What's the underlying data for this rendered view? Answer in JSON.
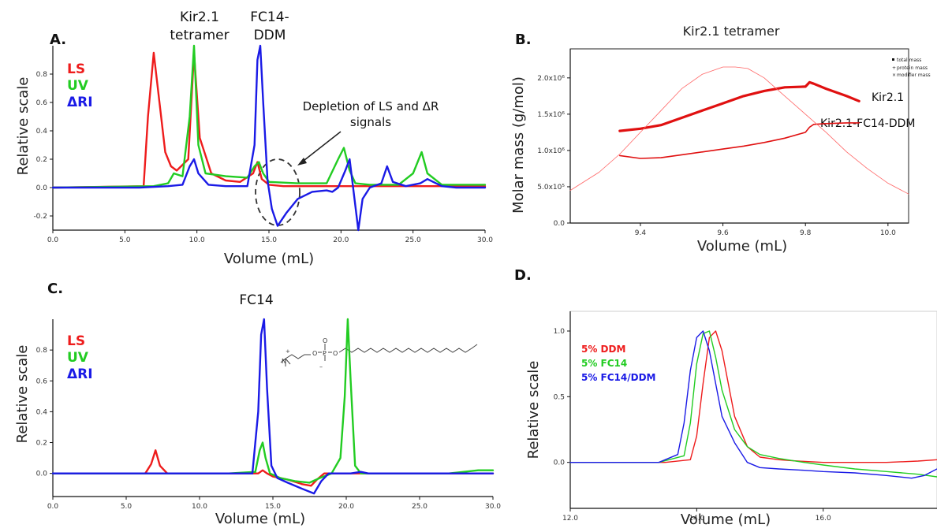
{
  "colors": {
    "LS": "#ee1c1c",
    "UV": "#22cc22",
    "RI": "#1a1ae6",
    "B_line": "#e01010",
    "axis": "#111111"
  },
  "panels": {
    "A": {
      "letter": "A.",
      "xlabel": "Volume (mL)",
      "ylabel": "Relative scale",
      "xticks": [
        "0.0",
        "5.0",
        "10.0",
        "15.0",
        "20.0",
        "25.0",
        "30.0"
      ],
      "yticks": [
        "-0.2",
        "0.0",
        "0.2",
        "0.4",
        "0.6",
        "0.8"
      ],
      "legend": [
        "LS",
        "UV",
        "ΔRI"
      ],
      "peak_label_1": [
        "Kir2.1",
        "tetramer"
      ],
      "peak_label_2": [
        "FC14-",
        "DDM"
      ],
      "annotation": [
        "Depletion of LS and ΔR",
        "signals"
      ]
    },
    "B": {
      "letter": "B.",
      "title": "Kir2.1 tetramer",
      "xlabel": "Volume (mL)",
      "ylabel": "Molar mass (g/mol)",
      "xticks": [
        "9.4",
        "9.6",
        "9.8",
        "10.0"
      ],
      "yticks": [
        "0.0",
        "5.0x10⁵",
        "1.0x10⁶",
        "1.5x10⁶",
        "2.0x10⁶"
      ],
      "legend": [
        "total mass",
        "protein mass",
        "modifier mass"
      ],
      "label_1": "Kir2.1",
      "label_2": "Kir2.1-FC14-DDM"
    },
    "C": {
      "letter": "C.",
      "title": "FC14",
      "xlabel": "Volume (mL)",
      "ylabel": "Relative scale",
      "xticks": [
        "0.0",
        "5.0",
        "10.0",
        "15.0",
        "20.0",
        "25.0",
        "30.0"
      ],
      "yticks": [
        "0.0",
        "0.2",
        "0.4",
        "0.6",
        "0.8"
      ],
      "legend": [
        "LS",
        "UV",
        "ΔRI"
      ]
    },
    "D": {
      "letter": "D.",
      "xlabel": "Volume (mL)",
      "ylabel": "Relative scale",
      "xticks": [
        "12.0",
        "14.0",
        "16.0"
      ],
      "yticks": [
        "0.0",
        "0.5",
        "1.0"
      ],
      "legend": [
        "5% DDM",
        "5% FC14",
        "5% FC14/DDM"
      ]
    }
  },
  "chart_data": [
    {
      "panel": "A",
      "type": "line",
      "xlim": [
        0,
        30
      ],
      "ylim": [
        -0.3,
        1.0
      ],
      "series": [
        {
          "name": "LS",
          "color": "#ee1c1c",
          "x": [
            0,
            6.3,
            6.6,
            7.0,
            7.4,
            7.8,
            8.2,
            8.6,
            9.4,
            9.8,
            10.2,
            11,
            12,
            13,
            13.9,
            14.2,
            14.5,
            15,
            16,
            17,
            18,
            19,
            20,
            21,
            22,
            23,
            24,
            25,
            26,
            27,
            28,
            29,
            30
          ],
          "y": [
            0,
            0.01,
            0.5,
            0.95,
            0.6,
            0.25,
            0.15,
            0.12,
            0.2,
            0.95,
            0.35,
            0.1,
            0.05,
            0.04,
            0.1,
            0.18,
            0.06,
            0.02,
            0.01,
            0.01,
            0.01,
            0.01,
            0.01,
            0.01,
            0.01,
            0.01,
            0.01,
            0.01,
            0.01,
            0.01,
            0.01,
            0.01,
            0.01
          ]
        },
        {
          "name": "UV",
          "color": "#22cc22",
          "x": [
            0,
            7,
            8,
            8.4,
            9,
            9.5,
            9.8,
            10.1,
            10.6,
            12,
            13.5,
            14,
            14.3,
            14.6,
            15,
            17,
            19,
            19.8,
            20.2,
            20.6,
            21,
            22,
            23,
            24,
            25,
            25.6,
            26,
            27,
            28,
            29,
            30
          ],
          "y": [
            0,
            0.01,
            0.03,
            0.1,
            0.08,
            0.5,
            1.0,
            0.3,
            0.1,
            0.08,
            0.07,
            0.15,
            0.18,
            0.1,
            0.04,
            0.03,
            0.03,
            0.2,
            0.28,
            0.12,
            0.03,
            0.02,
            0.02,
            0.02,
            0.1,
            0.25,
            0.1,
            0.02,
            0.02,
            0.02,
            0.02
          ]
        },
        {
          "name": "ΔRI",
          "color": "#1a1ae6",
          "x": [
            0,
            6,
            8,
            9,
            9.5,
            9.8,
            10.1,
            10.8,
            12,
            13.5,
            14,
            14.2,
            14.4,
            14.6,
            14.9,
            15.2,
            15.6,
            16.2,
            17,
            18,
            19,
            19.4,
            19.8,
            20.3,
            20.6,
            20.9,
            21.2,
            21.5,
            22,
            22.8,
            23.2,
            23.6,
            24.5,
            25.5,
            26,
            27,
            28,
            29,
            30
          ],
          "y": [
            0,
            0,
            0.01,
            0.02,
            0.15,
            0.2,
            0.1,
            0.02,
            0.01,
            0.01,
            0.3,
            0.9,
            1.0,
            0.6,
            0.05,
            -0.15,
            -0.27,
            -0.18,
            -0.08,
            -0.03,
            -0.02,
            -0.03,
            0.0,
            0.12,
            0.2,
            -0.05,
            -0.3,
            -0.08,
            0.0,
            0.03,
            0.15,
            0.04,
            0.01,
            0.03,
            0.06,
            0.01,
            0.0,
            0.0,
            0.0
          ]
        }
      ]
    },
    {
      "panel": "B",
      "type": "line",
      "xlim": [
        9.23,
        10.05
      ],
      "ylim": [
        0,
        2400000.0
      ],
      "series": [
        {
          "name": "Kir2.1",
          "color": "#e01010",
          "x": [
            9.35,
            9.4,
            9.45,
            9.5,
            9.55,
            9.6,
            9.65,
            9.7,
            9.75,
            9.8,
            9.81,
            9.82,
            9.85,
            9.9,
            9.93
          ],
          "y": [
            1270000.0,
            1300000.0,
            1350000.0,
            1450000.0,
            1550000.0,
            1650000.0,
            1750000.0,
            1820000.0,
            1870000.0,
            1880000.0,
            1940000.0,
            1920000.0,
            1850000.0,
            1750000.0,
            1680000.0
          ]
        },
        {
          "name": "Kir2.1-FC14-DDM",
          "color": "#e01010",
          "x": [
            9.35,
            9.4,
            9.45,
            9.5,
            9.55,
            9.6,
            9.65,
            9.7,
            9.75,
            9.8,
            9.81,
            9.82,
            9.85,
            9.9,
            9.93
          ],
          "y": [
            930000.0,
            890000.0,
            900000.0,
            940000.0,
            980000.0,
            1020000.0,
            1060000.0,
            1110000.0,
            1170000.0,
            1250000.0,
            1320000.0,
            1360000.0,
            1370000.0,
            1380000.0,
            1380000.0
          ]
        },
        {
          "color": "#ff6666",
          "x": [
            9.23,
            9.3,
            9.35,
            9.4,
            9.45,
            9.5,
            9.55,
            9.6,
            9.63,
            9.66,
            9.7,
            9.75,
            9.8,
            9.85,
            9.9,
            9.95,
            10.0,
            10.05
          ],
          "y": [
            450000.0,
            700000.0,
            950000.0,
            1250000.0,
            1550000.0,
            1850000.0,
            2050000.0,
            2150000.0,
            2150000.0,
            2130000.0,
            2000000.0,
            1750000.0,
            1500000.0,
            1250000.0,
            980000.0,
            750000.0,
            550000.0,
            400000.0
          ]
        }
      ]
    },
    {
      "panel": "C",
      "type": "line",
      "xlim": [
        0,
        30
      ],
      "ylim": [
        -0.15,
        1.0
      ],
      "series": [
        {
          "name": "LS",
          "color": "#ee1c1c",
          "x": [
            0,
            6.3,
            6.7,
            7.0,
            7.3,
            7.8,
            9,
            12,
            14,
            14.3,
            14.6,
            15,
            16,
            17,
            17.6,
            18,
            18.5,
            19,
            20,
            21,
            24,
            27,
            30
          ],
          "y": [
            0,
            0.0,
            0.06,
            0.15,
            0.05,
            0.0,
            0.0,
            0.0,
            0.0,
            0.02,
            0.0,
            -0.02,
            -0.04,
            -0.07,
            -0.08,
            -0.04,
            0.0,
            0.0,
            0.0,
            0.0,
            0.0,
            0.0,
            0.0
          ]
        },
        {
          "name": "UV",
          "color": "#22cc22",
          "x": [
            0,
            8,
            12,
            13.8,
            14.1,
            14.3,
            14.5,
            14.8,
            15.5,
            16.5,
            17.5,
            18.2,
            19,
            19.6,
            19.9,
            20.1,
            20.3,
            20.6,
            21,
            22,
            25,
            27,
            29,
            30
          ],
          "y": [
            0,
            0,
            0,
            0.01,
            0.15,
            0.2,
            0.1,
            0.0,
            -0.03,
            -0.05,
            -0.06,
            -0.03,
            0.0,
            0.1,
            0.5,
            1.0,
            0.6,
            0.05,
            0.0,
            0.0,
            0.0,
            0.0,
            0.02,
            0.02
          ]
        },
        {
          "name": "ΔRI",
          "color": "#1a1ae6",
          "x": [
            0,
            6,
            10,
            13.6,
            14.0,
            14.2,
            14.4,
            14.6,
            14.9,
            15.3,
            16,
            17,
            17.8,
            18.3,
            18.8,
            19.5,
            20.3,
            21,
            21.5,
            22,
            25,
            30
          ],
          "y": [
            0,
            0,
            0,
            0.0,
            0.4,
            0.9,
            1.0,
            0.55,
            0.05,
            -0.03,
            -0.06,
            -0.1,
            -0.13,
            -0.05,
            0.0,
            0.0,
            0.0,
            0.01,
            0.0,
            0.0,
            0.0,
            0.0
          ]
        }
      ]
    },
    {
      "panel": "D",
      "type": "line",
      "xlim": [
        12.0,
        17.8
      ],
      "ylim": [
        -0.35,
        1.15
      ],
      "series": [
        {
          "name": "5% DDM",
          "color": "#ee1c1c",
          "x": [
            12,
            13.5,
            13.9,
            14.0,
            14.1,
            14.2,
            14.3,
            14.4,
            14.5,
            14.6,
            14.8,
            15,
            15.3,
            15.6,
            16,
            16.5,
            17,
            17.5,
            17.8
          ],
          "y": [
            0,
            0,
            0.02,
            0.2,
            0.6,
            0.95,
            1.0,
            0.85,
            0.6,
            0.35,
            0.12,
            0.04,
            0.02,
            0.01,
            0.0,
            0.0,
            0.0,
            0.01,
            0.02
          ]
        },
        {
          "name": "5% FC14",
          "color": "#22cc22",
          "x": [
            12,
            13.4,
            13.8,
            13.9,
            14.0,
            14.1,
            14.2,
            14.3,
            14.4,
            14.6,
            14.8,
            15,
            15.3,
            15.7,
            16,
            16.5,
            17,
            17.5,
            17.8
          ],
          "y": [
            0,
            0,
            0.05,
            0.3,
            0.75,
            0.98,
            1.0,
            0.8,
            0.55,
            0.25,
            0.12,
            0.06,
            0.03,
            0.0,
            -0.02,
            -0.05,
            -0.07,
            -0.09,
            -0.11
          ]
        },
        {
          "name": "5% FC14/DDM",
          "color": "#1a1ae6",
          "x": [
            12,
            13.4,
            13.7,
            13.8,
            13.9,
            14.0,
            14.1,
            14.2,
            14.3,
            14.4,
            14.6,
            14.8,
            15,
            15.3,
            15.7,
            16,
            16.5,
            17,
            17.4,
            17.6,
            17.8
          ],
          "y": [
            0,
            0,
            0.06,
            0.3,
            0.7,
            0.95,
            1.0,
            0.85,
            0.6,
            0.35,
            0.15,
            0.0,
            -0.04,
            -0.05,
            -0.06,
            -0.07,
            -0.08,
            -0.1,
            -0.12,
            -0.1,
            -0.05
          ]
        }
      ]
    }
  ]
}
